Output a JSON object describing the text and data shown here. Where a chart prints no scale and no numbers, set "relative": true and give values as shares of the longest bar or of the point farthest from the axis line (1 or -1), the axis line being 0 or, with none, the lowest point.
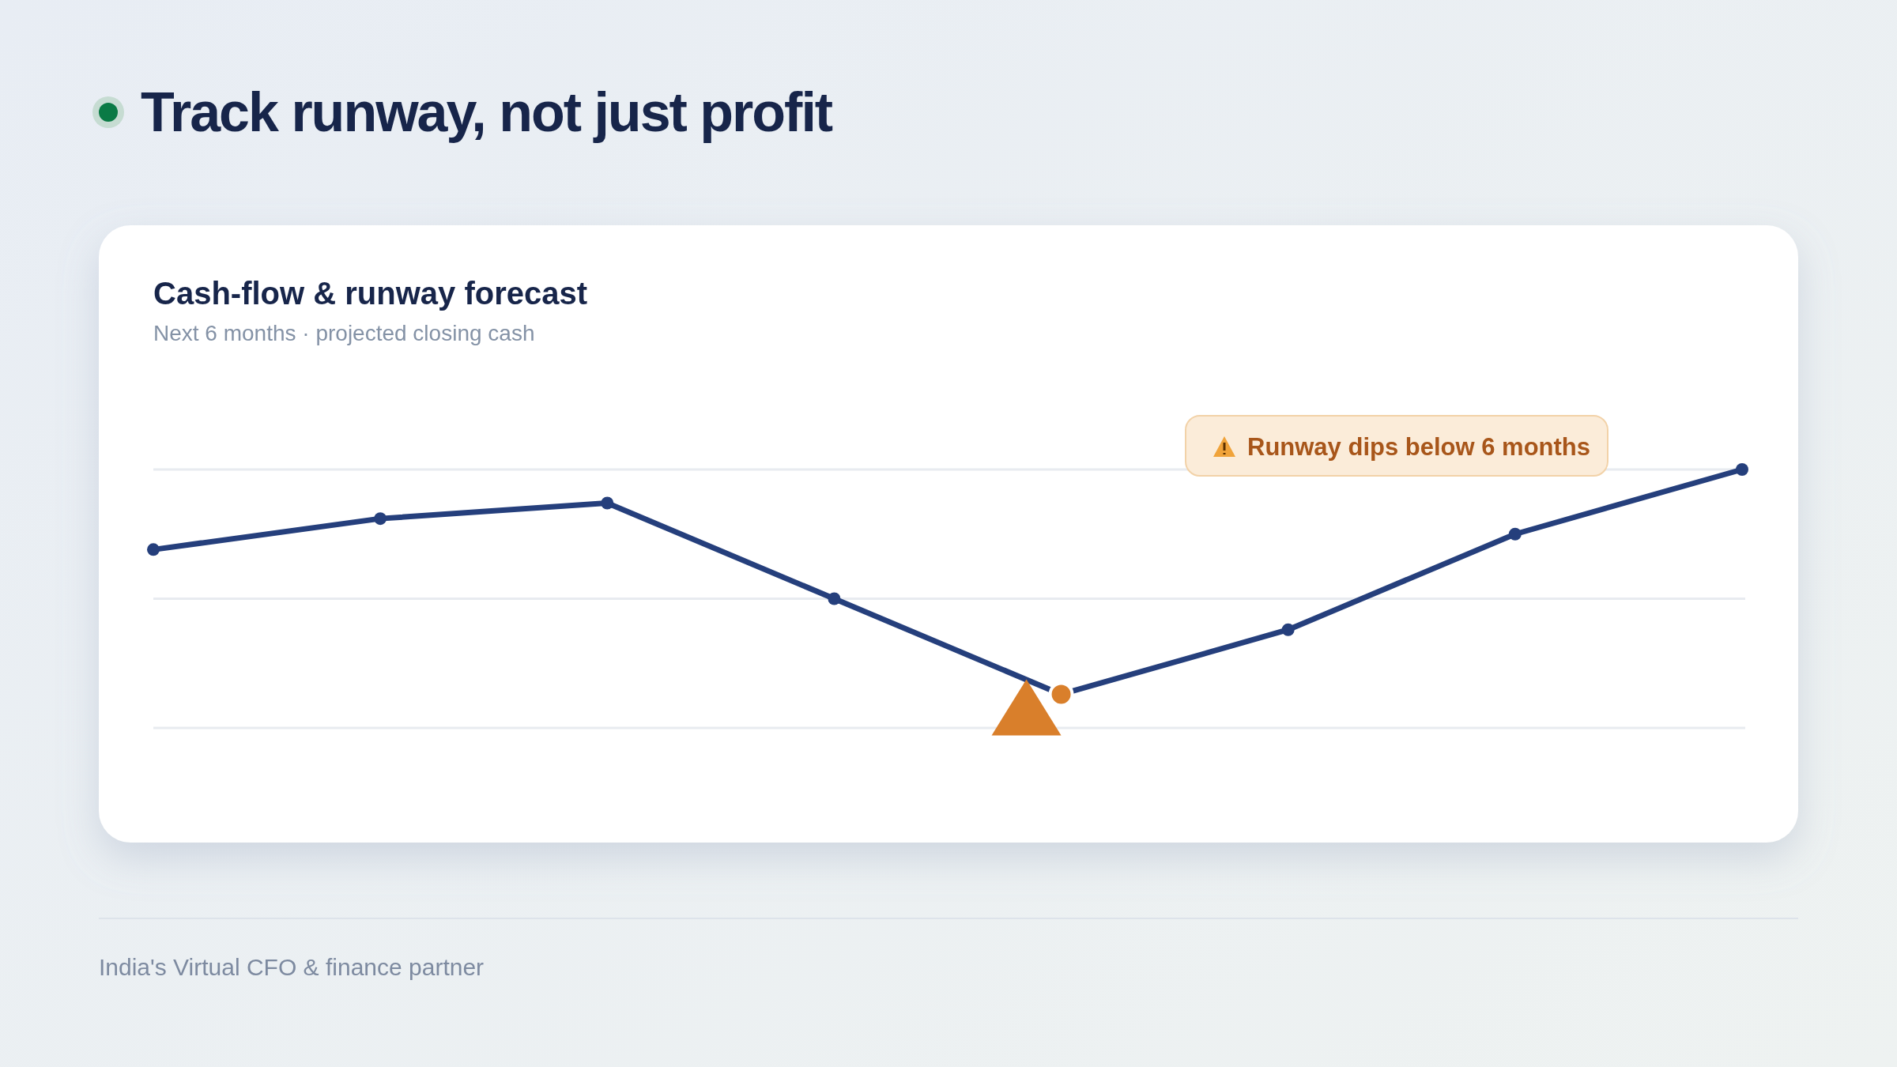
{
  "chart_data": {
    "type": "line",
    "title": "Track runway, not just profit",
    "subtitle": "Cash-flow & runway forecast",
    "relative": true,
    "marker": "circle",
    "ref_lines": [
      {
        "axis": "y",
        "value": 0.5,
        "color": "#e8ebf0"
      }
    ],
    "categories": [
      null,
      null,
      null,
      null,
      null,
      null,
      null,
      null
    ],
    "series": [
      {
        "color": "#253f7c",
        "colors": [
          "#253f7c",
          "#253f7c",
          "#253f7c",
          "#253f7c",
          "#d97f2b",
          "#253f7c",
          "#253f7c",
          "#253f7c"
        ],
        "values": [
          0.69,
          0.81,
          0.87,
          0.5,
          0.13,
          0.38,
          0.75,
          1
        ]
      }
    ],
    "annotations": [
      "Next 6 months · projected closing cash",
      "Runway dips below 6 months",
      "India's Virtual CFO & finance partner"
    ]
  }
}
